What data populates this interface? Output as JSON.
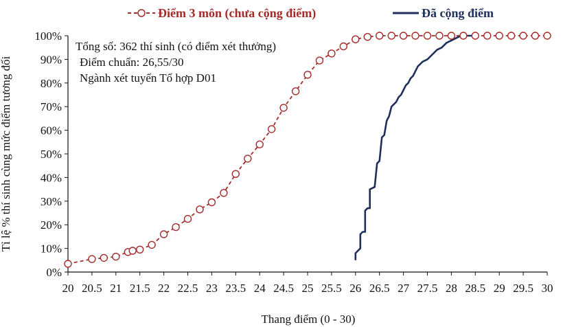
{
  "chart_data": {
    "type": "line",
    "xlabel": "Thang điểm (0 - 30)",
    "ylabel": "Tỉ lệ % thí sinh cùng mức điểm tương đối",
    "xlim": [
      20,
      30
    ],
    "ylim": [
      0,
      100
    ],
    "x_ticks": [
      "20",
      "20.5",
      "21",
      "21.5",
      "22",
      "22.5",
      "23",
      "23.5",
      "24",
      "24.5",
      "25",
      "25.5",
      "26",
      "26.5",
      "27",
      "27.5",
      "28",
      "28.5",
      "29",
      "29.5",
      "30"
    ],
    "y_ticks": [
      "0%",
      "10%",
      "20%",
      "30%",
      "40%",
      "50%",
      "60%",
      "70%",
      "80%",
      "90%",
      "100%"
    ],
    "grid": false,
    "legend_position": "top",
    "annotations": [
      "Tổng số: 362 thí sinh  (có điểm xét thưởng)",
      "Điểm chuẩn: 26,55/30",
      "Ngành xét tuyển Tổ hợp D01"
    ],
    "series": [
      {
        "name": "Điểm 3 môn (chưa cộng điểm)",
        "color": "#a52a2a",
        "style": "dashed-circle-markers",
        "x": [
          20,
          20.5,
          20.75,
          21,
          21.25,
          21.35,
          21.5,
          21.75,
          22,
          22.25,
          22.5,
          22.75,
          23,
          23.25,
          23.5,
          23.75,
          24,
          24.25,
          24.5,
          24.75,
          25,
          25.25,
          25.5,
          25.75,
          26,
          26.25,
          26.5,
          26.75,
          27,
          27.25,
          27.5,
          27.75,
          28,
          28.25,
          28.5,
          28.75,
          29,
          29.25,
          29.5,
          29.75,
          30
        ],
        "y": [
          3.5,
          5.5,
          6,
          6.5,
          8.5,
          9,
          9.5,
          11.5,
          16,
          19,
          22.5,
          26.5,
          29.5,
          33.5,
          41.5,
          48,
          54,
          60.5,
          69.5,
          76.5,
          83.5,
          89.5,
          92.5,
          95.5,
          98.5,
          99.5,
          100,
          100,
          100,
          100,
          100,
          100,
          100,
          100,
          100,
          100,
          100,
          100,
          100,
          100,
          100
        ]
      },
      {
        "name": "Đã cộng điểm",
        "color": "#1f2f5c",
        "style": "solid",
        "x": [
          26.0,
          26.0,
          26.05,
          26.1,
          26.1,
          26.15,
          26.2,
          26.2,
          26.25,
          26.3,
          26.3,
          26.4,
          26.45,
          26.5,
          26.55,
          26.6,
          26.65,
          26.7,
          26.75,
          26.8,
          26.85,
          26.9,
          26.95,
          27.0,
          27.05,
          27.1,
          27.15,
          27.2,
          27.3,
          27.4,
          27.5,
          27.6,
          27.7,
          27.8,
          27.9,
          28.0,
          28.1,
          28.2,
          28.3,
          28.5
        ],
        "y": [
          5,
          8,
          9,
          10,
          16,
          17,
          17,
          26,
          27,
          27,
          35,
          36,
          46,
          47,
          57,
          58,
          64,
          66,
          70,
          71,
          72,
          74,
          75,
          77,
          79,
          80,
          82,
          83,
          87,
          89,
          90,
          92,
          94,
          95,
          97,
          98,
          99,
          100,
          100,
          100
        ]
      }
    ]
  }
}
